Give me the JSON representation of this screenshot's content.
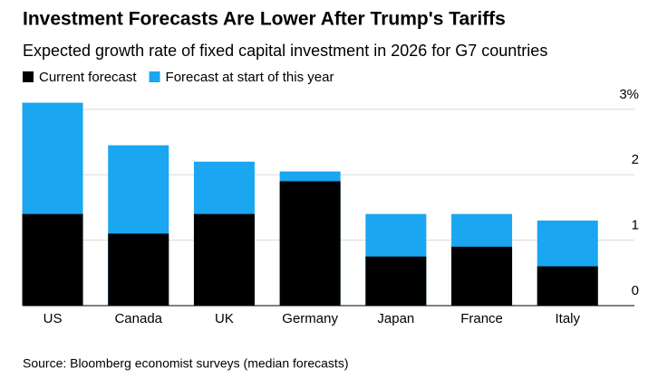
{
  "chart_data": {
    "type": "bar",
    "title": "Investment Forecasts Are Lower After Trump's Tariffs",
    "subtitle": "Expected growth rate of fixed capital investment in 2026 for G7 countries",
    "categories": [
      "US",
      "Canada",
      "UK",
      "Germany",
      "Japan",
      "France",
      "Italy"
    ],
    "series": [
      {
        "name": "Current forecast",
        "color": "#000000",
        "values": [
          1.4,
          1.1,
          1.4,
          1.9,
          0.75,
          0.9,
          0.6
        ]
      },
      {
        "name": "Forecast at start of this year",
        "color": "#1aa6f0",
        "values": [
          3.1,
          2.45,
          2.2,
          2.05,
          1.4,
          1.4,
          1.3
        ]
      }
    ],
    "ylim": [
      0,
      3.15
    ],
    "yticks": [
      0,
      1,
      2,
      {
        "value": 3,
        "label": "3%"
      }
    ],
    "grid": true,
    "source": "Source: Bloomberg economist surveys (median forecasts)"
  }
}
